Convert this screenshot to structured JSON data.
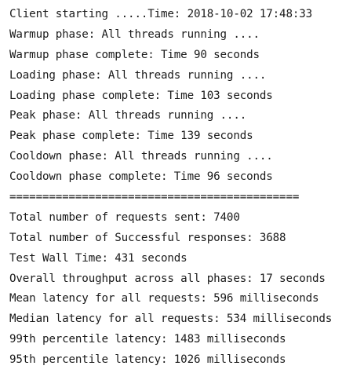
{
  "console": {
    "lines": [
      "Client starting .....Time: 2018-10-02 17:48:33",
      "Warmup phase: All threads running ....",
      "Warmup phase complete: Time 90 seconds",
      "Loading phase: All threads running ....",
      "Loading phase complete: Time 103 seconds",
      "Peak phase: All threads running ....",
      "Peak phase complete: Time 139 seconds",
      "Cooldown phase: All threads running ....",
      "Cooldown phase complete: Time 96 seconds",
      "============================================",
      "Total number of requests sent: 7400",
      "Total number of Successful responses: 3688",
      "Test Wall Time: 431 seconds",
      "Overall throughput across all phases: 17 seconds",
      "Mean latency for all requests: 596 milliseconds",
      "Median latency for all requests: 534 milliseconds",
      "99th percentile latency: 1483 milliseconds",
      "95th percentile latency: 1026 milliseconds"
    ]
  }
}
